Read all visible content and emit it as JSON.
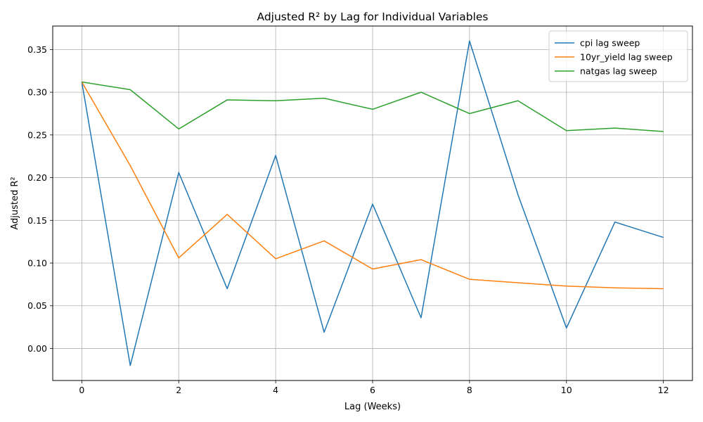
{
  "chart_data": {
    "type": "line",
    "title": "Adjusted R² by Lag for Individual Variables",
    "xlabel": "Lag (Weeks)",
    "ylabel": "Adjusted R²",
    "x": [
      0,
      1,
      2,
      3,
      4,
      5,
      6,
      7,
      8,
      9,
      10,
      11,
      12
    ],
    "xlim": [
      -0.6,
      12.6
    ],
    "ylim": [
      -0.0375,
      0.3775
    ],
    "xticks": [
      0,
      2,
      4,
      6,
      8,
      10,
      12
    ],
    "xtick_labels": [
      "0",
      "2",
      "4",
      "6",
      "8",
      "10",
      "12"
    ],
    "yticks": [
      0.0,
      0.05,
      0.1,
      0.15,
      0.2,
      0.25,
      0.3,
      0.35
    ],
    "ytick_labels": [
      "0.00",
      "0.05",
      "0.10",
      "0.15",
      "0.20",
      "0.25",
      "0.30",
      "0.35"
    ],
    "grid": true,
    "legend_position": "top-right",
    "series": [
      {
        "name": "cpi lag sweep",
        "color": "#1f77b4",
        "values": [
          0.312,
          -0.02,
          0.206,
          0.07,
          0.226,
          0.019,
          0.169,
          0.036,
          0.36,
          0.18,
          0.024,
          0.148,
          0.13
        ]
      },
      {
        "name": "10yr_yield lag sweep",
        "color": "#ff7f0e",
        "values": [
          0.312,
          0.214,
          0.106,
          0.157,
          0.105,
          0.126,
          0.093,
          0.104,
          0.081,
          0.077,
          0.073,
          0.071,
          0.07
        ]
      },
      {
        "name": "natgas lag sweep",
        "color": "#2ca02c",
        "values": [
          0.312,
          0.303,
          0.257,
          0.291,
          0.29,
          0.293,
          0.28,
          0.3,
          0.275,
          0.29,
          0.255,
          0.258,
          0.254
        ]
      }
    ]
  }
}
